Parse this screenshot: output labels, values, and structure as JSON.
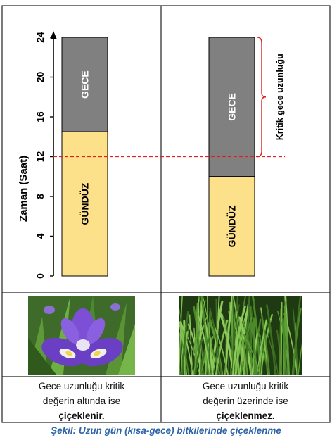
{
  "colors": {
    "day": "#fde08a",
    "night": "#808080",
    "critical_line": "#e02020",
    "bracket": "#e02020",
    "caption": "#2e64a8"
  },
  "axis": {
    "label": "Zaman (Saat)",
    "ticks": [
      "0",
      "4",
      "8",
      "12",
      "16",
      "20",
      "24"
    ],
    "max": 24,
    "critical_hours": 12
  },
  "left": {
    "day_hours": 14.5,
    "day_label": "GÜNDÜZ",
    "night_label": "GECE",
    "photo_alt": "iris-flower-photo",
    "caption_line1": "Gece uzunluğu kritik",
    "caption_line2": "değerin altında ise",
    "caption_bold": "çiçeklenir."
  },
  "right": {
    "day_hours": 10,
    "day_label": "GÜNDÜZ",
    "night_label": "GECE",
    "bracket_label": "Kritik gece uzunluğu",
    "photo_alt": "grass-photo",
    "caption_line1": "Gece uzunluğu kritik",
    "caption_line2": "değerin üzerinde ise",
    "caption_bold": "çiçeklenmez."
  },
  "figure_caption": "Şekil: Uzun gün (kısa-gece) bitkilerinde çiçeklenme"
}
